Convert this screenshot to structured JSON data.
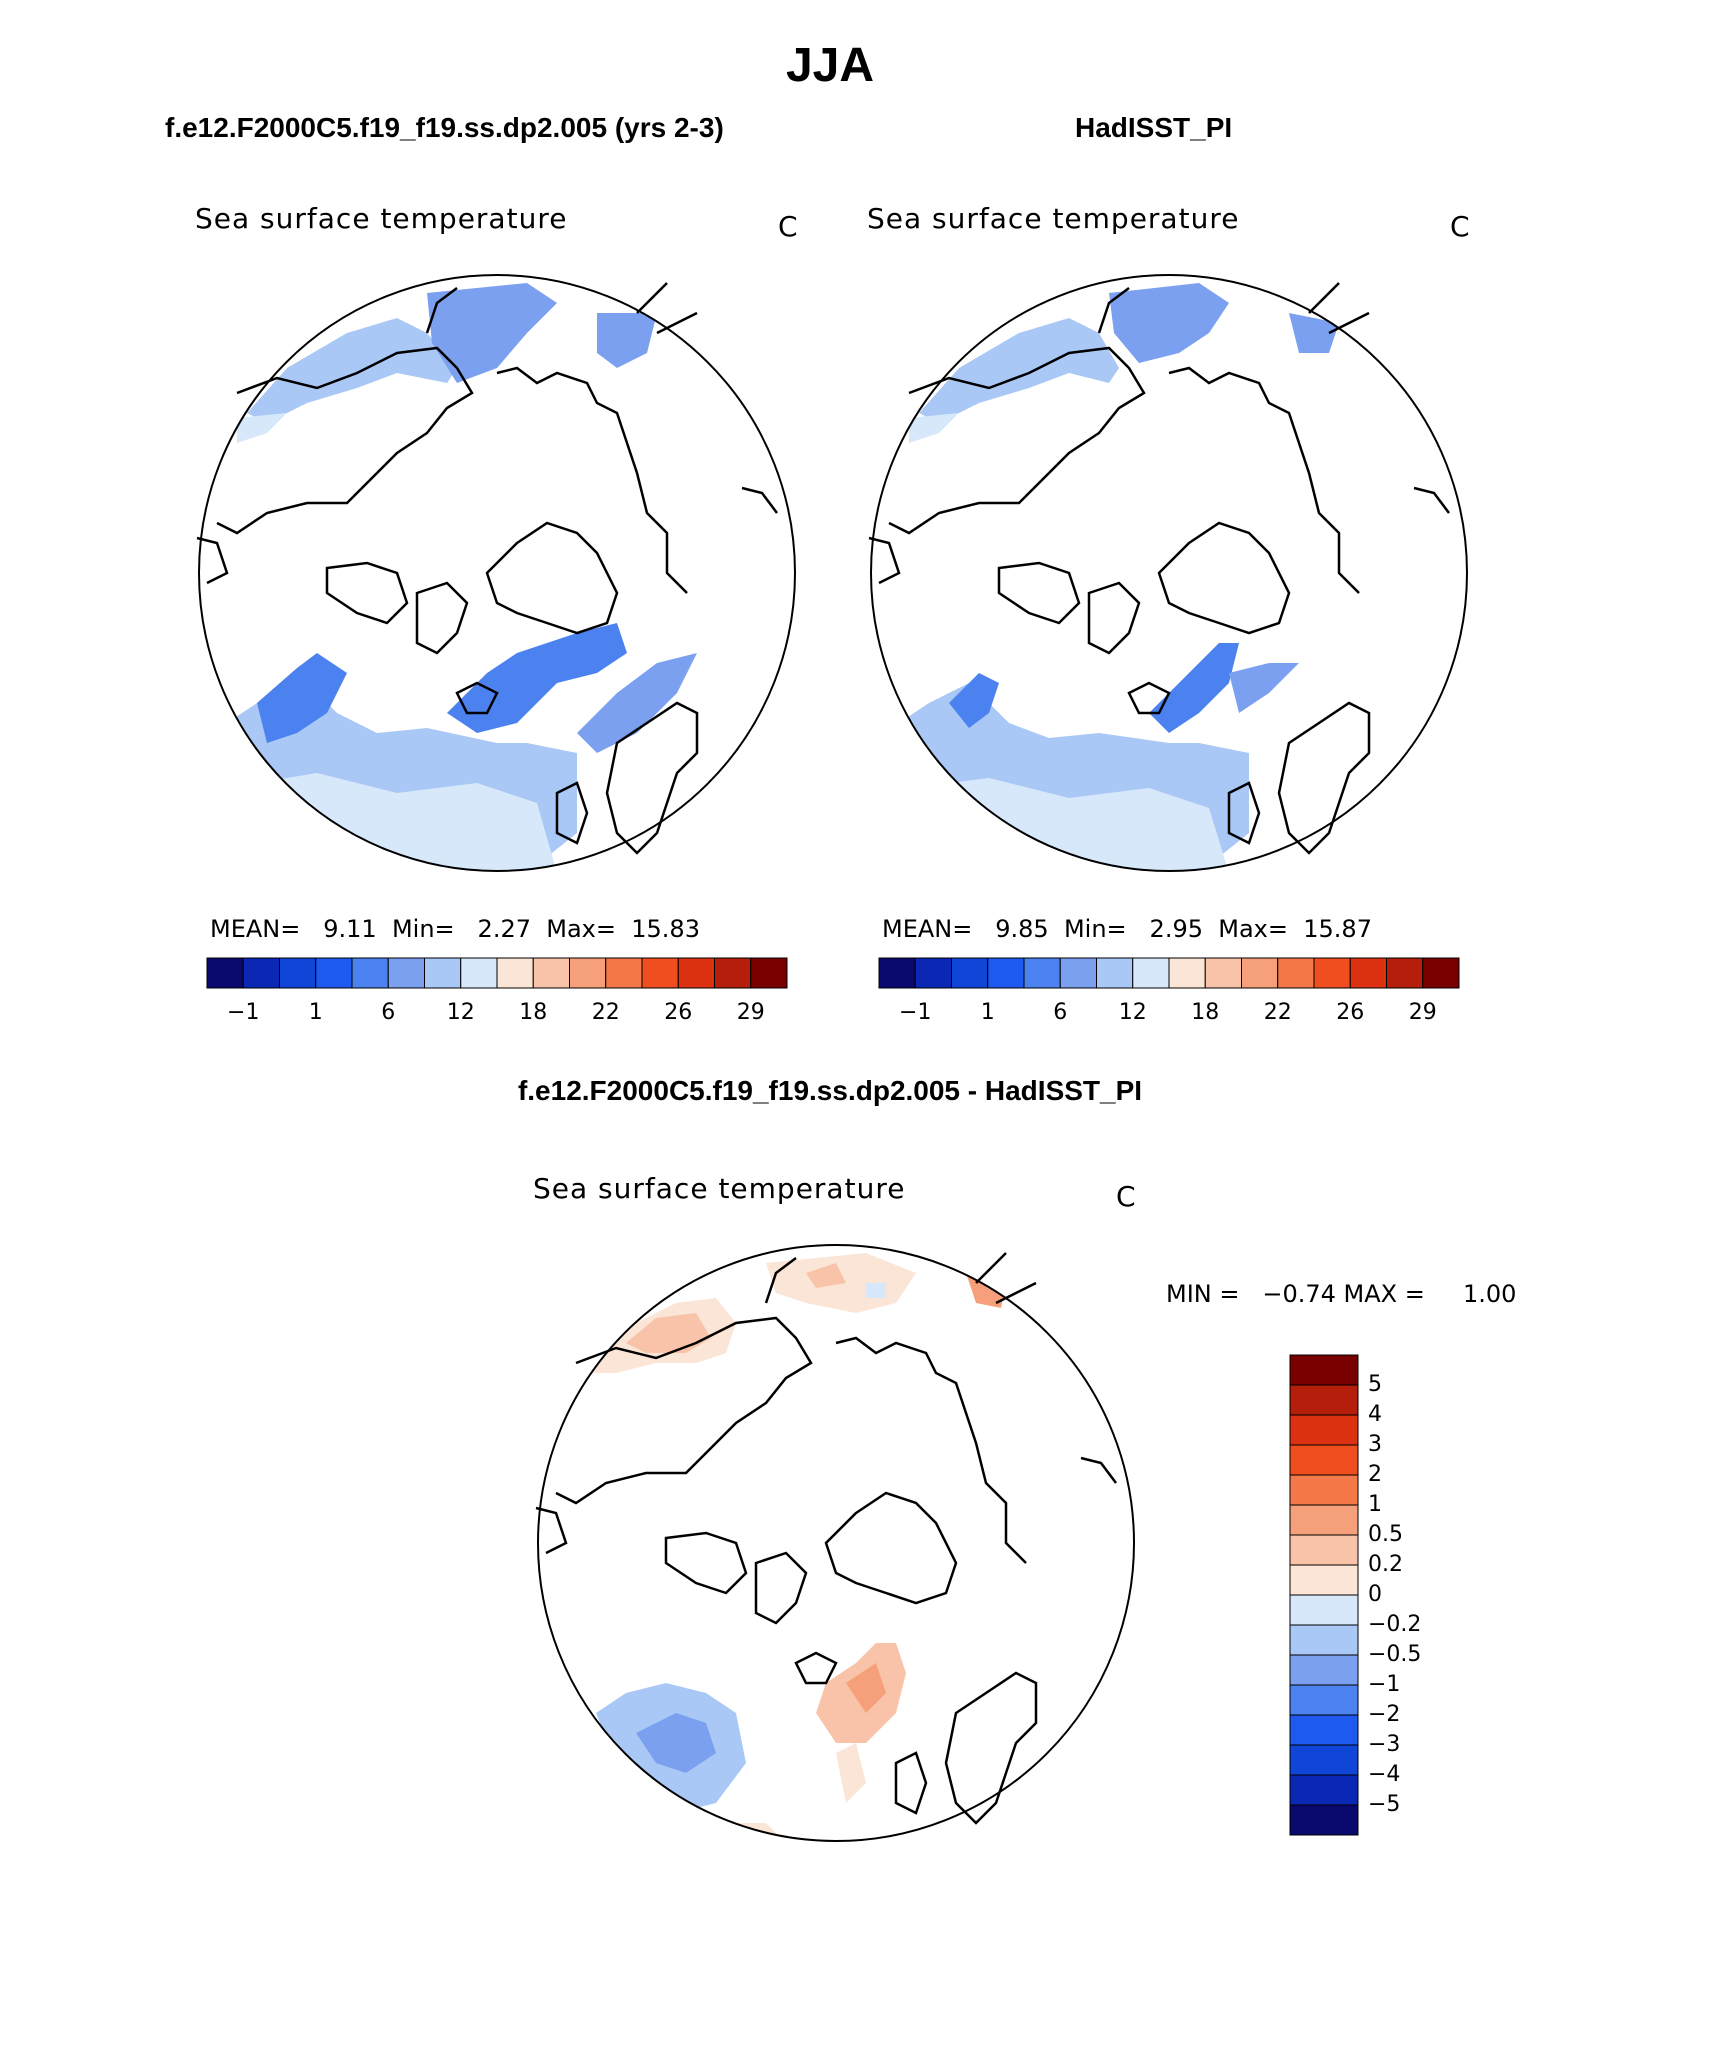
{
  "header": {
    "title": "JJA",
    "left_subtitle": "f.e12.F2000C5.f19_f19.ss.dp2.005 (yrs 2-3)",
    "right_subtitle": "HadISST_PI",
    "diff_title": "f.e12.F2000C5.f19_f19.ss.dp2.005 - HadISST_PI"
  },
  "panels": {
    "left": {
      "label": "Sea surface temperature",
      "unit": "C",
      "stats": {
        "mean_label": "MEAN=",
        "mean": "9.11",
        "min_label": "Min=",
        "min": "2.27",
        "max_label": "Max=",
        "max": "15.83"
      }
    },
    "right": {
      "label": "Sea surface temperature",
      "unit": "C",
      "stats": {
        "mean_label": "MEAN=",
        "mean": "9.85",
        "min_label": "Min=",
        "min": "2.95",
        "max_label": "Max=",
        "max": "15.87"
      }
    },
    "diff": {
      "label": "Sea surface temperature",
      "unit": "C",
      "minmax": "MIN =   −0.74 MAX =     1.00"
    }
  },
  "colorbars": {
    "abs_colors": [
      "#0a0a6e",
      "#0a28b4",
      "#0f46d7",
      "#1e5af0",
      "#4b82f0",
      "#7ba0f0",
      "#aac8f5",
      "#d7e8fa",
      "#fbe5d6",
      "#f8c3a8",
      "#f5a07a",
      "#f47848",
      "#f04e1e",
      "#dc3212",
      "#b41e0a",
      "#780000"
    ],
    "abs_ticks": [
      "−1",
      "1",
      "6",
      "12",
      "18",
      "22",
      "26",
      "29"
    ],
    "diff_colors": [
      "#780000",
      "#b41e0a",
      "#dc3212",
      "#f04e1e",
      "#f47848",
      "#f5a07a",
      "#f8c3a8",
      "#fbe5d6",
      "#d7e8fa",
      "#aac8f5",
      "#7ba0f0",
      "#4b82f0",
      "#1e5af0",
      "#0f46d7",
      "#0a28b4",
      "#0a0a6e"
    ],
    "diff_ticks": [
      "5",
      "4",
      "3",
      "2",
      "1",
      "0.5",
      "0.2",
      "0",
      "−0.2",
      "−0.5",
      "−1",
      "−2",
      "−3",
      "−4",
      "−5"
    ]
  }
}
